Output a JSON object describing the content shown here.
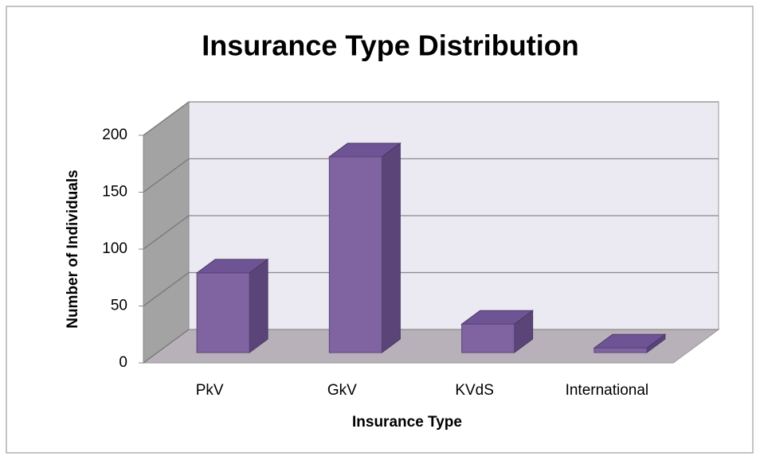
{
  "chart_data": {
    "type": "bar",
    "title": "Insurance Type Distribution",
    "x_label": "Insurance Type",
    "y_label": "Number of Individuals",
    "categories": [
      "PkV",
      "GkV",
      "KVdS",
      "International"
    ],
    "values": [
      70,
      172,
      25,
      4
    ],
    "color": "#8064a2",
    "ylim": [
      0,
      200
    ],
    "yticks": [
      0,
      50,
      100,
      150,
      200
    ],
    "grid": true
  }
}
